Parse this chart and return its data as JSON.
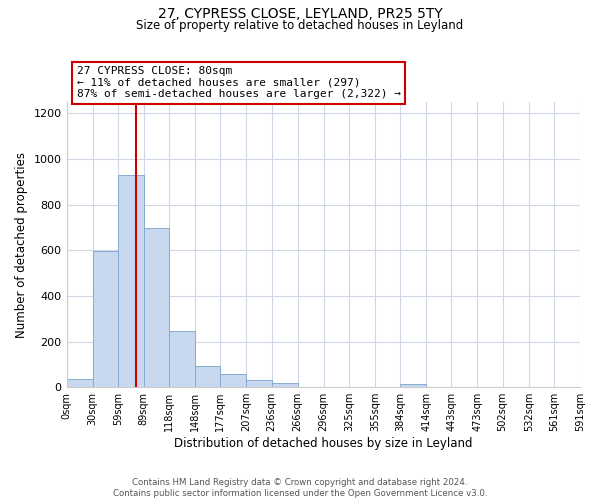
{
  "title": "27, CYPRESS CLOSE, LEYLAND, PR25 5TY",
  "subtitle": "Size of property relative to detached houses in Leyland",
  "xlabel": "Distribution of detached houses by size in Leyland",
  "ylabel": "Number of detached properties",
  "bin_labels": [
    "0sqm",
    "30sqm",
    "59sqm",
    "89sqm",
    "118sqm",
    "148sqm",
    "177sqm",
    "207sqm",
    "236sqm",
    "266sqm",
    "296sqm",
    "325sqm",
    "355sqm",
    "384sqm",
    "414sqm",
    "443sqm",
    "473sqm",
    "502sqm",
    "532sqm",
    "561sqm",
    "591sqm"
  ],
  "bin_edges": [
    0,
    30,
    59,
    89,
    118,
    148,
    177,
    207,
    236,
    266,
    296,
    325,
    355,
    384,
    414,
    443,
    473,
    502,
    532,
    561,
    591
  ],
  "bar_heights": [
    38,
    597,
    930,
    700,
    248,
    95,
    57,
    30,
    18,
    0,
    0,
    0,
    0,
    12,
    0,
    0,
    0,
    0,
    0,
    0
  ],
  "bar_color": "#c8d8ee",
  "bar_edgecolor": "#88aad0",
  "property_line_x": 80,
  "property_line_color": "#cc0000",
  "annotation_line1": "27 CYPRESS CLOSE: 80sqm",
  "annotation_line2": "← 11% of detached houses are smaller (297)",
  "annotation_line3": "87% of semi-detached houses are larger (2,322) →",
  "annotation_box_edgecolor": "#cc0000",
  "ylim": [
    0,
    1250
  ],
  "yticks": [
    0,
    200,
    400,
    600,
    800,
    1000,
    1200
  ],
  "footer_line1": "Contains HM Land Registry data © Crown copyright and database right 2024.",
  "footer_line2": "Contains public sector information licensed under the Open Government Licence v3.0.",
  "background_color": "#ffffff",
  "grid_color": "#d0d8e8"
}
